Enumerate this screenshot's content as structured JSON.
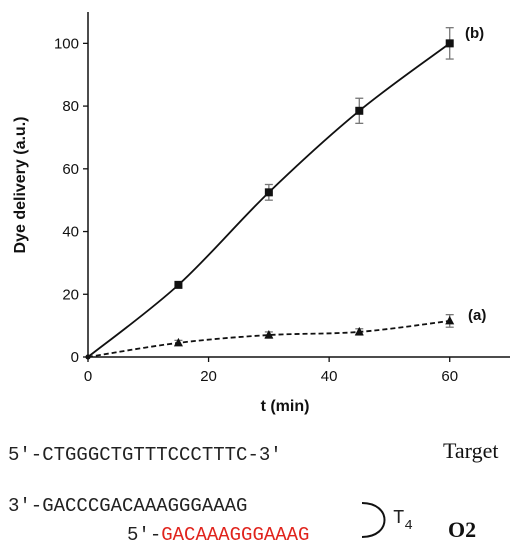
{
  "chart_data": {
    "type": "line",
    "xlabel": "t (min)",
    "ylabel": "Dye delivery (a.u.)",
    "xlim": [
      0,
      70
    ],
    "ylim": [
      0,
      110
    ],
    "xticks": [
      0,
      20,
      40,
      60
    ],
    "yticks": [
      0,
      20,
      40,
      60,
      80,
      100
    ],
    "grid": false,
    "legend": "none",
    "series": [
      {
        "name": "(b)",
        "marker": "square",
        "line_style": "solid",
        "x": [
          0,
          15,
          30,
          45,
          60
        ],
        "y": [
          0,
          23,
          52.5,
          78.5,
          100
        ],
        "error": [
          0,
          0,
          2.5,
          4,
          5
        ]
      },
      {
        "name": "(a)",
        "marker": "triangle",
        "line_style": "dashed",
        "x": [
          0,
          15,
          30,
          45,
          60
        ],
        "y": [
          0,
          4.5,
          7,
          8,
          11.5
        ],
        "error": [
          0,
          0.8,
          1,
          1,
          2
        ]
      }
    ]
  },
  "sequences": {
    "target": {
      "text": "5'-CTGGGCTGTTTCCCTTTC-3'",
      "label": "Target"
    },
    "o2_top": {
      "text": "3'-GACCCGACAAAGGGAAAG"
    },
    "o2_bottom": {
      "prefix": "5'-",
      "red_text": "GACAAAGGGAAAG"
    },
    "loop_label": {
      "main": "T",
      "sub": "4"
    },
    "o2_label": "O2"
  },
  "colors": {
    "red_sequence": "#e0231c",
    "ink": "#111111"
  }
}
